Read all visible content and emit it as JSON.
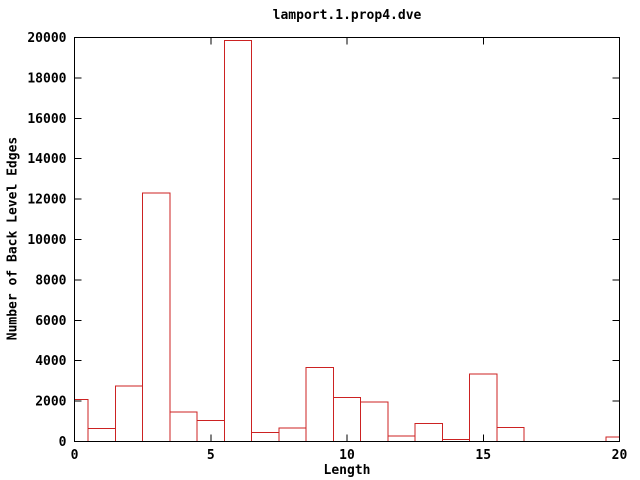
{
  "chart_data": {
    "type": "bar",
    "style": "outline-boxes-histogram",
    "title": "lamport.1.prop4.dve",
    "xlabel": "Length",
    "ylabel": "Number of Back Level Edges",
    "xlim": [
      0,
      20
    ],
    "ylim": [
      0,
      20000
    ],
    "xticks": [
      0,
      5,
      10,
      15,
      20
    ],
    "yticks": [
      0,
      2000,
      4000,
      6000,
      8000,
      10000,
      12000,
      14000,
      16000,
      18000,
      20000
    ],
    "grid": false,
    "legend": "none",
    "bar_width": 1,
    "bar_align": "center",
    "x": [
      0,
      1,
      2,
      3,
      4,
      5,
      6,
      7,
      8,
      9,
      10,
      11,
      12,
      13,
      14,
      15,
      16,
      17,
      18,
      19,
      20
    ],
    "values": [
      2080,
      650,
      2750,
      12300,
      1450,
      1050,
      19850,
      450,
      680,
      3660,
      2190,
      1960,
      280,
      880,
      100,
      3350,
      700,
      0,
      0,
      0,
      230
    ],
    "colors": {
      "bar_outline": "#cc2222",
      "axis": "#000000",
      "text": "#000000",
      "background": "#ffffff"
    }
  }
}
